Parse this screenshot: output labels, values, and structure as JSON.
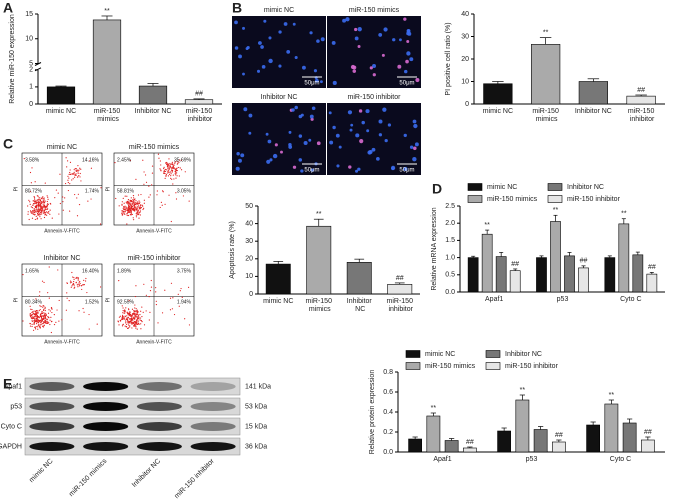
{
  "panel_labels": [
    "A",
    "B",
    "C",
    "D",
    "E"
  ],
  "chart_data": [
    {
      "type": "bar",
      "ylabel": "Relative miR-150 expression",
      "categories": [
        "mimic NC",
        "miR-150 mimics",
        "Inhibitor NC",
        "miR-150 inhibitor"
      ],
      "values": [
        1.0,
        13.8,
        1.05,
        0.25
      ],
      "errors": [
        0.05,
        0.8,
        0.15,
        0.05
      ],
      "colors": [
        "#111111",
        "#aaaaaa",
        "#777777",
        "#e6e6e6"
      ],
      "ylim": [
        0,
        15
      ],
      "yticks": [
        0,
        1,
        2,
        5,
        10,
        15
      ],
      "axis_break": [
        2,
        5
      ],
      "marks": [
        null,
        "**",
        null,
        "##"
      ]
    },
    {
      "type": "bar",
      "ylabel": "PI positive cell ratio (%)",
      "categories": [
        "mimic NC",
        "miR-150 mimics",
        "Inhibitor NC",
        "miR-150 inhibitor"
      ],
      "values": [
        9,
        26.5,
        10,
        3.5
      ],
      "errors": [
        1,
        3,
        1.2,
        0.5
      ],
      "colors": [
        "#111111",
        "#aaaaaa",
        "#777777",
        "#e6e6e6"
      ],
      "ylim": [
        0,
        40
      ],
      "yticks": [
        0,
        10,
        20,
        30,
        40
      ],
      "marks": [
        null,
        "**",
        null,
        "##"
      ]
    },
    {
      "type": "bar",
      "ylabel": "Apoptosis rate (%)",
      "categories": [
        "mimic NC",
        "miR-150 mimics",
        "Inhibitor NC",
        "miR-150 inhibitor"
      ],
      "values": [
        17,
        38.5,
        18,
        5.5
      ],
      "errors": [
        1.5,
        4,
        1.8,
        0.8
      ],
      "colors": [
        "#111111",
        "#aaaaaa",
        "#777777",
        "#e6e6e6"
      ],
      "ylim": [
        0,
        50
      ],
      "yticks": [
        0,
        10,
        20,
        30,
        40,
        50
      ],
      "marks": [
        null,
        "**",
        null,
        "##"
      ]
    },
    {
      "type": "grouped_bar",
      "ylabel": "Relative mRNA expression",
      "categories": [
        "Apaf1",
        "p53",
        "Cyto C"
      ],
      "series": [
        {
          "name": "mimic NC",
          "color": "#111111",
          "values": [
            1.0,
            1.0,
            1.0
          ],
          "errors": [
            0.04,
            0.05,
            0.05
          ],
          "marks": [
            null,
            null,
            null
          ]
        },
        {
          "name": "miR-150 mimics",
          "color": "#aaaaaa",
          "values": [
            1.68,
            2.05,
            1.98
          ],
          "errors": [
            0.12,
            0.18,
            0.15
          ],
          "marks": [
            "**",
            "**",
            "**"
          ]
        },
        {
          "name": "Inhibitor NC",
          "color": "#777777",
          "values": [
            1.03,
            1.05,
            1.08
          ],
          "errors": [
            0.12,
            0.1,
            0.08
          ],
          "marks": [
            null,
            null,
            null
          ]
        },
        {
          "name": "miR-150 inhibitor",
          "color": "#e6e6e6",
          "values": [
            0.62,
            0.7,
            0.52
          ],
          "errors": [
            0.05,
            0.06,
            0.05
          ],
          "marks": [
            "##",
            "##",
            "##"
          ]
        }
      ],
      "ylim": [
        0,
        2.5
      ],
      "yticks": [
        {
          "value": 0,
          "label": "0.0"
        },
        0.5,
        {
          "value": 1,
          "label": "1.0"
        },
        1.5,
        {
          "value": 2,
          "label": "2.0"
        },
        2.5
      ]
    },
    {
      "type": "grouped_bar",
      "ylabel": "Relative protein expression",
      "categories": [
        "Apaf1",
        "p53",
        "Cyto C"
      ],
      "series": [
        {
          "name": "mimic NC",
          "color": "#111111",
          "values": [
            0.13,
            0.21,
            0.27
          ],
          "errors": [
            0.02,
            0.03,
            0.03
          ],
          "marks": [
            null,
            null,
            null
          ]
        },
        {
          "name": "miR-150 mimics",
          "color": "#aaaaaa",
          "values": [
            0.36,
            0.52,
            0.48
          ],
          "errors": [
            0.03,
            0.05,
            0.04
          ],
          "marks": [
            "**",
            "**",
            "**"
          ]
        },
        {
          "name": "Inhibitor NC",
          "color": "#777777",
          "values": [
            0.115,
            0.225,
            0.29
          ],
          "errors": [
            0.02,
            0.03,
            0.04
          ],
          "marks": [
            null,
            null,
            null
          ]
        },
        {
          "name": "miR-150 inhibitor",
          "color": "#e6e6e6",
          "values": [
            0.04,
            0.1,
            0.12
          ],
          "errors": [
            0.01,
            0.02,
            0.03
          ],
          "marks": [
            "##",
            "##",
            "##"
          ]
        }
      ],
      "ylim": [
        0,
        0.8
      ],
      "yticks": [
        {
          "value": 0,
          "label": "0.0"
        },
        0.2,
        0.4,
        0.6,
        0.8
      ]
    }
  ],
  "microscopy": {
    "labels": [
      "mimic NC",
      "miR-150 mimics",
      "Inhibitor NC",
      "miR-150 inhibitor"
    ],
    "scale": "50μm"
  },
  "flow": {
    "ylabel": "PI",
    "xlabel": "Annexin-V-FITC",
    "panels": [
      {
        "title": "mimic NC",
        "quadrants": [
          "3.58%",
          "14.16%",
          "80.72%",
          "1.74%"
        ]
      },
      {
        "title": "miR-150 mimics",
        "quadrants": [
          "2.45%",
          "35.69%",
          "58.81%",
          "3.05%"
        ]
      },
      {
        "title": "Inhibitor NC",
        "quadrants": [
          "1.65%",
          "16.40%",
          "80.34%",
          "1.52%"
        ]
      },
      {
        "title": "miR-150 inhibitor",
        "quadrants": [
          "1.89%",
          "3.75%",
          "92.55%",
          "1.94%"
        ]
      }
    ]
  },
  "blot": {
    "rows": [
      {
        "name": "Apaf1",
        "size": "141 kDa"
      },
      {
        "name": "p53",
        "size": "53 kDa"
      },
      {
        "name": "Cyto C",
        "size": "15 kDa"
      },
      {
        "name": "GAPDH",
        "size": "36 kDa"
      }
    ],
    "lanes": [
      "mimic NC",
      "miR-150 mimics",
      "Inhibitor NC",
      "miR-150 inhibitor"
    ]
  }
}
